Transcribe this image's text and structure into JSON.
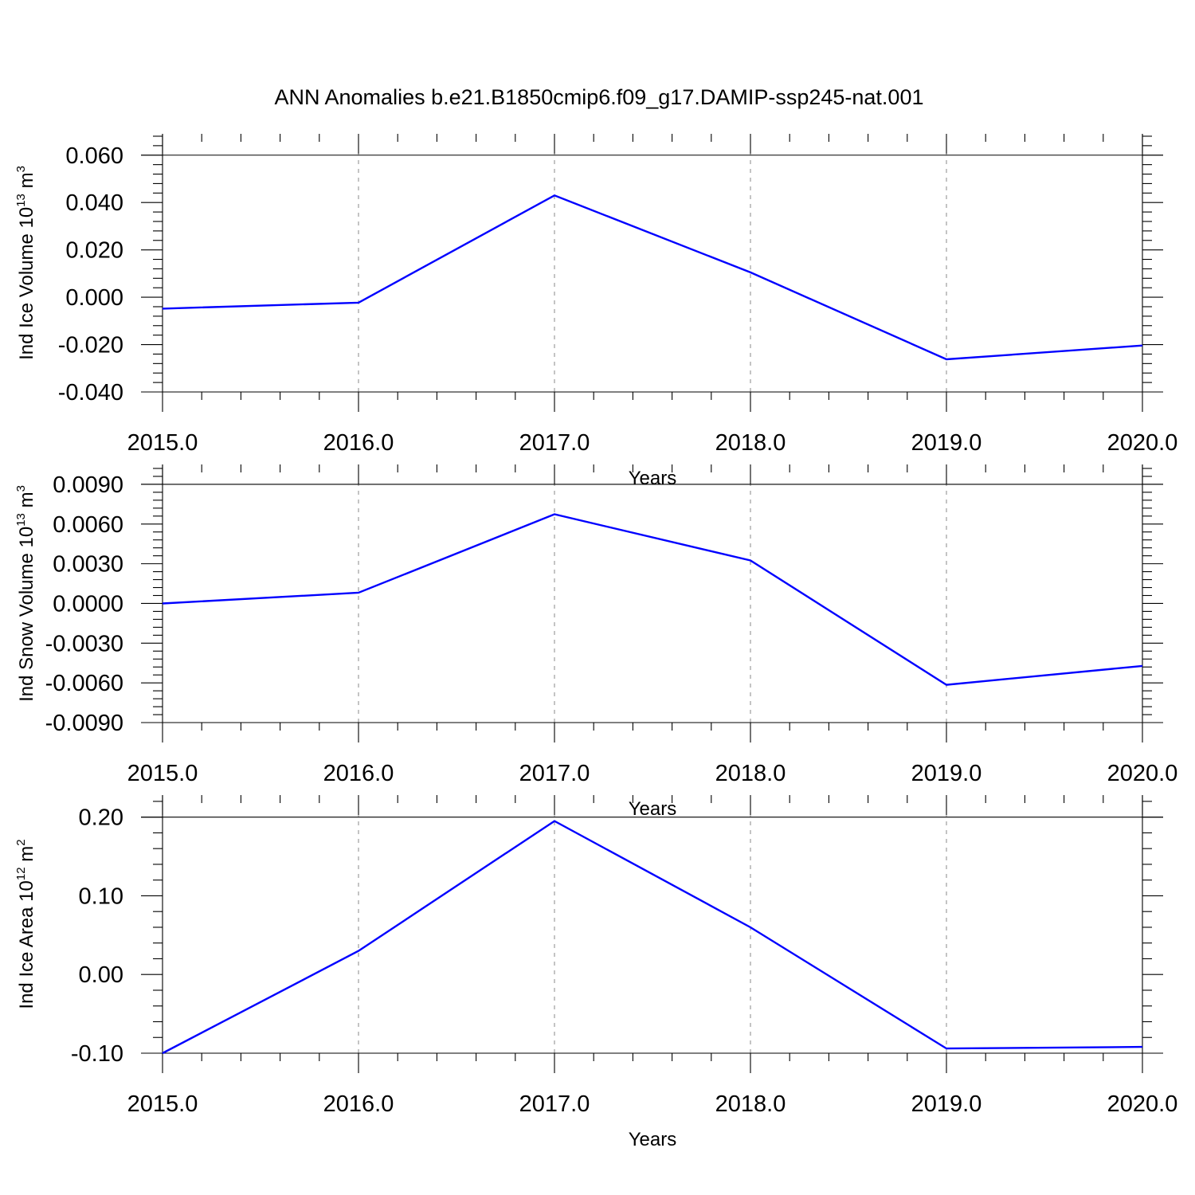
{
  "title": "ANN Anomalies b.e21.B1850cmip6.f09_g17.DAMIP-ssp245-nat.001",
  "colors": {
    "line": "#0000ff",
    "axis": "#000000",
    "grid": "#888888"
  },
  "chart_data": [
    {
      "type": "line",
      "ylabel_main": "Ind Ice Volume 10",
      "ylabel_exp1": "13",
      "ylabel_unit": " m",
      "ylabel_exp2": "3",
      "xlabel": "Years",
      "xlim": [
        2015,
        2020
      ],
      "ylim": [
        -0.04,
        0.069
      ],
      "x_ticks": [
        2015,
        2016,
        2017,
        2018,
        2019,
        2020
      ],
      "x_tick_labels": [
        "2015.0",
        "2016.0",
        "2017.0",
        "2018.0",
        "2019.0",
        "2020.0"
      ],
      "y_ticks": [
        -0.04,
        -0.02,
        0.0,
        0.02,
        0.04,
        0.06
      ],
      "y_tick_labels": [
        "-0.040",
        "-0.020",
        "0.000",
        "0.020",
        "0.040",
        "0.060"
      ],
      "grid": "vertical-dashed",
      "series": [
        {
          "x": [
            2015,
            2016,
            2017,
            2018,
            2019,
            2020
          ],
          "values": [
            -0.0048,
            -0.0023,
            0.043,
            0.0105,
            -0.0262,
            -0.0204
          ]
        }
      ]
    },
    {
      "type": "line",
      "ylabel_main": "Ind Snow Volume 10",
      "ylabel_exp1": "13",
      "ylabel_unit": " m",
      "ylabel_exp2": "3",
      "xlabel": "Years",
      "xlim": [
        2015,
        2020
      ],
      "ylim": [
        -0.009,
        0.0105
      ],
      "x_ticks": [
        2015,
        2016,
        2017,
        2018,
        2019,
        2020
      ],
      "x_tick_labels": [
        "2015.0",
        "2016.0",
        "2017.0",
        "2018.0",
        "2019.0",
        "2020.0"
      ],
      "y_ticks": [
        -0.009,
        -0.006,
        -0.003,
        0.0,
        0.003,
        0.006,
        0.009
      ],
      "y_tick_labels": [
        "-0.0090",
        "-0.0060",
        "-0.0030",
        "0.0000",
        "0.0030",
        "0.0060",
        "0.0090"
      ],
      "grid": "vertical-dashed",
      "series": [
        {
          "x": [
            2015,
            2016,
            2017,
            2018,
            2019,
            2020
          ],
          "values": [
            0.0,
            0.00081,
            0.00674,
            0.00325,
            -0.00615,
            -0.00472
          ]
        }
      ]
    },
    {
      "type": "line",
      "ylabel_main": "Ind Ice Area 10",
      "ylabel_exp1": "12",
      "ylabel_unit": " m",
      "ylabel_exp2": "2",
      "xlabel": "Years",
      "xlim": [
        2015,
        2020
      ],
      "ylim": [
        -0.1,
        0.228
      ],
      "x_ticks": [
        2015,
        2016,
        2017,
        2018,
        2019,
        2020
      ],
      "x_tick_labels": [
        "2015.0",
        "2016.0",
        "2017.0",
        "2018.0",
        "2019.0",
        "2020.0"
      ],
      "y_ticks": [
        -0.1,
        0.0,
        0.1,
        0.2
      ],
      "y_tick_labels": [
        "-0.10",
        "0.00",
        "0.10",
        "0.20"
      ],
      "grid": "vertical-dashed",
      "series": [
        {
          "x": [
            2015,
            2016,
            2017,
            2018,
            2019,
            2020
          ],
          "values": [
            -0.1,
            0.03,
            0.195,
            0.06,
            -0.094,
            -0.092
          ]
        }
      ]
    }
  ]
}
